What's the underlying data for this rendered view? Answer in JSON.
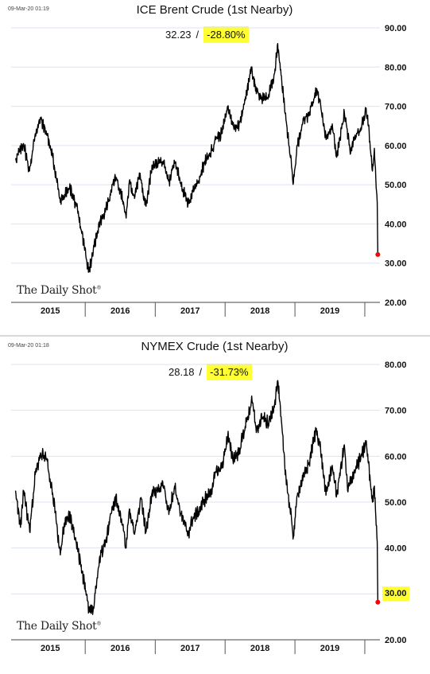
{
  "chart_data": [
    {
      "type": "line",
      "timestamp": "09-Mar-20 01:19",
      "title": "ICE Brent Crude (1st Nearby)",
      "last_value": "32.23",
      "separator": "/",
      "change": "-28.80%",
      "watermark": "The Daily Shot",
      "x_labels": [
        "2015",
        "2016",
        "2017",
        "2018",
        "2019"
      ],
      "y_ticks": [
        "20.00",
        "30.00",
        "40.00",
        "50.00",
        "60.00",
        "70.00",
        "80.00",
        "90.00"
      ],
      "ylim": [
        20,
        90
      ],
      "grid": true,
      "color": "#000000",
      "endpoint_color": "#ff0000",
      "series": [
        {
          "x": [
            "2015-01-02",
            "2015-02-13",
            "2015-03-16",
            "2015-04-15",
            "2015-05-14",
            "2015-06-15",
            "2015-07-15",
            "2015-08-14",
            "2015-08-24",
            "2015-09-15",
            "2015-10-15",
            "2015-11-16",
            "2015-12-15",
            "2016-01-20",
            "2016-02-12",
            "2016-03-15",
            "2016-04-15",
            "2016-05-16",
            "2016-06-09",
            "2016-07-15",
            "2016-08-02",
            "2016-08-19",
            "2016-09-15",
            "2016-10-10",
            "2016-11-14",
            "2016-12-15",
            "2017-01-16",
            "2017-02-15",
            "2017-03-15",
            "2017-04-12",
            "2017-05-15",
            "2017-06-21",
            "2017-07-17",
            "2017-08-15",
            "2017-09-15",
            "2017-10-16",
            "2017-11-15",
            "2017-12-15",
            "2018-01-15",
            "2018-02-15",
            "2018-03-15",
            "2018-04-16",
            "2018-05-17",
            "2018-06-15",
            "2018-07-16",
            "2018-08-15",
            "2018-09-17",
            "2018-10-03",
            "2018-11-15",
            "2018-12-24",
            "2019-01-15",
            "2019-02-15",
            "2019-03-15",
            "2019-04-25",
            "2019-05-15",
            "2019-06-13",
            "2019-07-15",
            "2019-08-07",
            "2019-09-16",
            "2019-10-15",
            "2019-11-15",
            "2019-12-16",
            "2020-01-06",
            "2020-01-20",
            "2020-02-10",
            "2020-02-20",
            "2020-03-06",
            "2020-03-09"
          ],
          "values": [
            56.4,
            60.5,
            53.5,
            63.0,
            66.8,
            63.0,
            57.0,
            49.0,
            45.5,
            47.5,
            49.0,
            44.5,
            37.5,
            28.0,
            33.0,
            40.5,
            43.0,
            48.5,
            52.0,
            46.0,
            41.5,
            51.0,
            46.5,
            53.0,
            44.5,
            55.0,
            55.5,
            56.0,
            51.0,
            56.0,
            50.5,
            44.8,
            48.5,
            51.0,
            55.5,
            58.0,
            62.0,
            63.0,
            70.0,
            64.5,
            65.5,
            71.5,
            80.0,
            73.5,
            72.0,
            72.5,
            78.5,
            86.0,
            66.5,
            50.5,
            60.0,
            66.5,
            67.5,
            74.5,
            70.5,
            61.5,
            65.5,
            57.0,
            68.5,
            59.0,
            62.0,
            65.0,
            68.9,
            65.0,
            53.5,
            59.3,
            45.3,
            32.2
          ]
        }
      ]
    },
    {
      "type": "line",
      "timestamp": "09-Mar-20 01:18",
      "title": "NYMEX Crude (1st Nearby)",
      "last_value": "28.18",
      "separator": "/",
      "change": "-31.73%",
      "last_label": "30.00",
      "watermark": "The Daily Shot",
      "x_labels": [
        "2015",
        "2016",
        "2017",
        "2018",
        "2019"
      ],
      "y_ticks": [
        "20.00",
        "30.00",
        "40.00",
        "50.00",
        "60.00",
        "70.00",
        "80.00"
      ],
      "ylim": [
        20,
        80
      ],
      "grid": true,
      "color": "#000000",
      "endpoint_color": "#ff0000",
      "series": [
        {
          "x": [
            "2015-01-02",
            "2015-01-28",
            "2015-02-13",
            "2015-03-17",
            "2015-04-15",
            "2015-05-14",
            "2015-06-15",
            "2015-07-15",
            "2015-08-24",
            "2015-09-15",
            "2015-10-15",
            "2015-11-16",
            "2015-12-15",
            "2016-01-20",
            "2016-02-11",
            "2016-03-15",
            "2016-04-15",
            "2016-05-16",
            "2016-06-08",
            "2016-07-15",
            "2016-08-02",
            "2016-08-19",
            "2016-09-15",
            "2016-10-19",
            "2016-11-14",
            "2016-12-15",
            "2017-01-16",
            "2017-02-15",
            "2017-03-15",
            "2017-04-12",
            "2017-05-15",
            "2017-06-21",
            "2017-07-17",
            "2017-08-15",
            "2017-09-15",
            "2017-10-16",
            "2017-11-15",
            "2017-12-15",
            "2018-01-15",
            "2018-02-09",
            "2018-03-15",
            "2018-04-16",
            "2018-05-22",
            "2018-06-15",
            "2018-07-16",
            "2018-08-15",
            "2018-09-17",
            "2018-10-03",
            "2018-11-15",
            "2018-12-24",
            "2019-01-15",
            "2019-02-15",
            "2019-03-15",
            "2019-04-23",
            "2019-05-15",
            "2019-06-12",
            "2019-07-15",
            "2019-08-07",
            "2019-09-16",
            "2019-10-03",
            "2019-11-15",
            "2019-12-16",
            "2020-01-07",
            "2020-01-20",
            "2020-02-10",
            "2020-02-20",
            "2020-03-06",
            "2020-03-09"
          ],
          "values": [
            52.5,
            44.5,
            52.5,
            43.5,
            56.0,
            60.5,
            59.5,
            52.0,
            38.5,
            45.5,
            47.0,
            41.0,
            35.0,
            26.5,
            26.2,
            37.5,
            41.0,
            47.5,
            51.0,
            45.0,
            40.0,
            48.5,
            43.0,
            51.0,
            43.5,
            52.0,
            52.5,
            53.5,
            48.0,
            53.5,
            47.5,
            43.0,
            46.5,
            48.0,
            50.5,
            52.0,
            56.5,
            57.5,
            64.5,
            59.5,
            61.0,
            66.5,
            72.0,
            65.5,
            68.5,
            67.0,
            71.5,
            76.5,
            55.5,
            42.5,
            52.0,
            55.5,
            58.5,
            66.0,
            61.5,
            51.5,
            58.0,
            51.5,
            62.5,
            52.5,
            57.5,
            60.0,
            63.0,
            58.5,
            50.0,
            53.5,
            41.3,
            28.2
          ]
        }
      ]
    }
  ]
}
